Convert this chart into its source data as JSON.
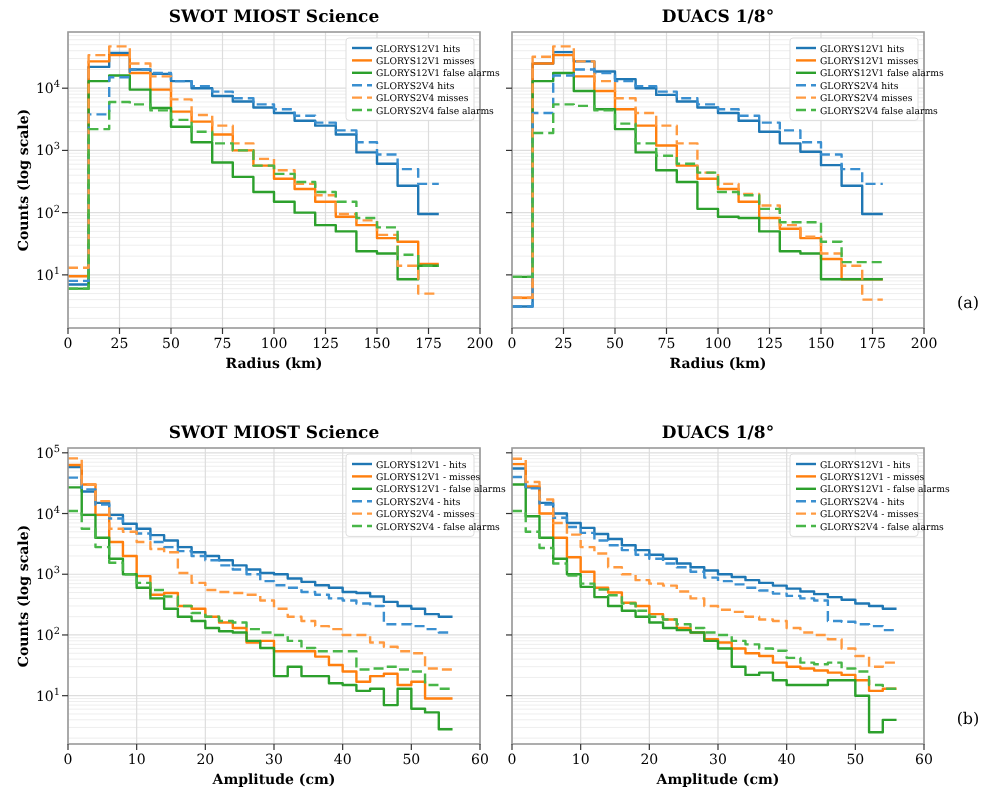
{
  "chart_data": [
    {
      "type": "histogram",
      "title": "SWOT MIOST Science",
      "xlabel": "Radius (km)",
      "ylabel": "Counts (log scale)",
      "log": true,
      "grid": true,
      "legend": "top right",
      "xlim": [
        0,
        200
      ],
      "xticks": [
        0,
        25,
        50,
        75,
        100,
        125,
        150,
        175,
        200
      ],
      "ylim": [
        1.4,
        80000
      ],
      "yticks": [
        {
          "value": 10,
          "label": "10$^{1}$"
        },
        {
          "value": 100,
          "label": "10$^{2}$"
        },
        {
          "value": 1000,
          "label": "10$^{3}$"
        },
        {
          "value": 10000,
          "label": "10$^{4}$"
        }
      ],
      "bins": [
        0,
        10,
        20,
        30,
        40,
        50,
        60,
        70,
        80,
        90,
        100,
        110,
        120,
        130,
        140,
        150,
        160,
        170,
        180
      ],
      "series": [
        {
          "name": "GLORYS12V1 hits",
          "color": "#1f77b4",
          "line_style": "solid",
          "values": [
            7,
            22000,
            37000,
            20000,
            17000,
            13000,
            10000,
            7500,
            6100,
            4900,
            4000,
            3000,
            2500,
            1800,
            930,
            610,
            270,
            95
          ]
        },
        {
          "name": "GLORYS12V1 misses",
          "color": "#ff7f0e",
          "line_style": "solid",
          "values": [
            9.5,
            27000,
            34000,
            17500,
            9500,
            4200,
            2900,
            1800,
            1000,
            570,
            350,
            240,
            150,
            86,
            63,
            39,
            34,
            15
          ]
        },
        {
          "name": "GLORYS12V1 false alarms",
          "color": "#2ca02c",
          "line_style": "solid",
          "values": [
            6,
            13000,
            16000,
            9500,
            4800,
            2400,
            1350,
            640,
            375,
            215,
            150,
            100,
            63,
            50,
            24,
            22,
            8.5,
            14
          ]
        },
        {
          "name": "GLORYS2V4 hits",
          "color": "#3a8fd0",
          "line_style": "dashed",
          "values": [
            8,
            3800,
            15000,
            20000,
            17500,
            13000,
            10800,
            8800,
            6900,
            5500,
            4600,
            3600,
            2800,
            2100,
            1350,
            860,
            500,
            290
          ]
        },
        {
          "name": "GLORYS2V4 misses",
          "color": "#ff9a40",
          "line_style": "dashed",
          "values": [
            13,
            34000,
            47000,
            25000,
            15500,
            6600,
            3700,
            2500,
            1300,
            730,
            480,
            290,
            190,
            95,
            75,
            44,
            14,
            5
          ]
        },
        {
          "name": "GLORYS2V4 false alarms",
          "color": "#48b648",
          "line_style": "dashed",
          "values": [
            6,
            2200,
            6000,
            5500,
            4400,
            3100,
            2000,
            1300,
            1000,
            570,
            420,
            310,
            215,
            150,
            82,
            58,
            21,
            14
          ]
        }
      ]
    },
    {
      "type": "histogram",
      "title": "DUACS 1/8°",
      "xlabel": "Radius (km)",
      "annotations": [
        "(a)"
      ],
      "log": true,
      "grid": true,
      "legend": "top right",
      "tick_labels": "x",
      "xlim": [
        0,
        200
      ],
      "xticks": [
        0,
        25,
        50,
        75,
        100,
        125,
        150,
        175,
        200
      ],
      "ylim": [
        1.4,
        80000
      ],
      "yticks": [
        {
          "value": 10,
          "label": null
        },
        {
          "value": 100,
          "label": null
        },
        {
          "value": 1000,
          "label": null
        },
        {
          "value": 10000,
          "label": null
        }
      ],
      "bins": [
        0,
        10,
        20,
        30,
        40,
        50,
        60,
        70,
        80,
        90,
        100,
        110,
        120,
        130,
        140,
        150,
        160,
        170,
        180
      ],
      "series": [
        {
          "name": "GLORYS12V1 hits",
          "color": "#1f77b4",
          "line_style": "solid",
          "values": [
            3.1,
            25000,
            38000,
            27000,
            18500,
            14000,
            10000,
            7800,
            6100,
            4900,
            4000,
            3000,
            2000,
            1300,
            950,
            580,
            270,
            95
          ]
        },
        {
          "name": "GLORYS12V1 misses",
          "color": "#ff7f0e",
          "line_style": "solid",
          "values": [
            4.3,
            25000,
            34000,
            15500,
            9000,
            4600,
            2500,
            1200,
            570,
            350,
            240,
            150,
            82,
            55,
            39,
            18,
            8.5,
            8.5
          ]
        },
        {
          "name": "GLORYS12V1 false alarms",
          "color": "#2ca02c",
          "line_style": "solid",
          "values": [
            9.3,
            13000,
            17500,
            9000,
            4600,
            2200,
            930,
            480,
            310,
            115,
            86,
            82,
            50,
            24,
            22,
            8.5,
            8.5,
            8.5
          ]
        },
        {
          "name": "GLORYS2V4 hits",
          "color": "#3a8fd0",
          "line_style": "dashed",
          "values": [
            3.1,
            4000,
            16000,
            20000,
            17500,
            13000,
            10800,
            8800,
            6900,
            5500,
            4600,
            3600,
            2800,
            2100,
            1350,
            860,
            500,
            290
          ]
        },
        {
          "name": "GLORYS2V4 misses",
          "color": "#ff9a40",
          "line_style": "dashed",
          "values": [
            4.3,
            32000,
            47000,
            27000,
            13000,
            6900,
            4000,
            2500,
            1300,
            440,
            290,
            200,
            130,
            63,
            41,
            22,
            14,
            4
          ]
        },
        {
          "name": "GLORYS2V4 false alarms",
          "color": "#48b648",
          "line_style": "dashed",
          "values": [
            9.3,
            1900,
            5500,
            5200,
            4400,
            2700,
            1300,
            820,
            610,
            440,
            215,
            190,
            115,
            70,
            70,
            34,
            16,
            16
          ]
        }
      ]
    },
    {
      "type": "histogram",
      "title": "SWOT MIOST Science",
      "xlabel": "Amplitude (cm)",
      "ylabel": "Counts (log scale)",
      "log": true,
      "grid": true,
      "legend": "top right",
      "xlim": [
        0,
        60
      ],
      "xticks": [
        0,
        10,
        20,
        30,
        40,
        50,
        60
      ],
      "ylim": [
        1.6,
        120000
      ],
      "yticks": [
        {
          "value": 10,
          "label": "10$^{1}$"
        },
        {
          "value": 100,
          "label": "10$^{2}$"
        },
        {
          "value": 1000,
          "label": "10$^{3}$"
        },
        {
          "value": 10000,
          "label": "10$^{4}$"
        },
        {
          "value": 100000,
          "label": "10$^{5}$"
        }
      ],
      "bins": [
        0,
        2,
        4,
        6,
        8,
        10,
        12,
        14,
        16,
        18,
        20,
        22,
        24,
        26,
        28,
        30,
        32,
        34,
        36,
        38,
        40,
        42,
        44,
        46,
        48,
        50,
        52,
        54,
        56
      ],
      "series": [
        {
          "name": "GLORYS12V1 - hits",
          "color": "#1f77b4",
          "line_style": "solid",
          "values": [
            58000,
            23000,
            15000,
            9500,
            6800,
            5600,
            4400,
            3600,
            2800,
            2300,
            2000,
            1700,
            1400,
            1200,
            1050,
            1000,
            850,
            750,
            660,
            600,
            510,
            490,
            430,
            350,
            300,
            270,
            220,
            200
          ]
        },
        {
          "name": "GLORYS12V1 - misses",
          "color": "#ff7f0e",
          "line_style": "solid",
          "values": [
            63000,
            30000,
            9500,
            3400,
            2000,
            930,
            460,
            490,
            300,
            270,
            200,
            160,
            130,
            75,
            80,
            54,
            54,
            54,
            44,
            32,
            25,
            17,
            21,
            23,
            15,
            17,
            9,
            9
          ]
        },
        {
          "name": "GLORYS12V1 - false alarms",
          "color": "#2ca02c",
          "line_style": "solid",
          "values": [
            27000,
            9500,
            4000,
            1800,
            1000,
            600,
            400,
            270,
            200,
            170,
            130,
            115,
            110,
            80,
            61,
            21,
            30,
            21,
            21,
            16,
            15,
            12,
            13,
            7,
            13,
            6.1,
            5.3,
            2.8
          ]
        },
        {
          "name": "GLORYS2V4 - hits",
          "color": "#3a8fd0",
          "line_style": "dashed",
          "values": [
            39000,
            25000,
            14000,
            8300,
            5600,
            4700,
            3400,
            2800,
            2400,
            2000,
            1700,
            1400,
            1200,
            1000,
            770,
            660,
            600,
            510,
            460,
            400,
            370,
            330,
            300,
            150,
            150,
            140,
            125,
            110
          ]
        },
        {
          "name": "GLORYS2V4 - misses",
          "color": "#ff9a40",
          "line_style": "dashed",
          "values": [
            81000,
            30000,
            16000,
            5600,
            5000,
            3400,
            2600,
            2300,
            1050,
            720,
            550,
            510,
            490,
            460,
            370,
            270,
            200,
            170,
            140,
            125,
            100,
            100,
            75,
            64,
            54,
            50,
            28,
            27
          ]
        },
        {
          "name": "GLORYS2V4 - false alarms",
          "color": "#48b648",
          "line_style": "dashed",
          "values": [
            11000,
            5600,
            2800,
            1550,
            1000,
            720,
            550,
            430,
            300,
            230,
            200,
            170,
            160,
            125,
            110,
            100,
            80,
            61,
            54,
            54,
            54,
            27,
            28,
            30,
            27,
            25,
            15,
            13
          ]
        }
      ]
    },
    {
      "type": "histogram",
      "title": "DUACS 1/8°",
      "xlabel": "Amplitude (cm)",
      "annotations": [
        "(b)"
      ],
      "log": true,
      "grid": true,
      "legend": "top right",
      "tick_labels": "x",
      "xlim": [
        0,
        60
      ],
      "xticks": [
        0,
        10,
        20,
        30,
        40,
        50,
        60
      ],
      "ylim": [
        1.6,
        120000
      ],
      "yticks": [
        {
          "value": 10,
          "label": null
        },
        {
          "value": 100,
          "label": null
        },
        {
          "value": 1000,
          "label": null
        },
        {
          "value": 10000,
          "label": null
        },
        {
          "value": 100000,
          "label": null
        }
      ],
      "bins": [
        0,
        2,
        4,
        6,
        8,
        10,
        12,
        14,
        16,
        18,
        20,
        22,
        24,
        26,
        28,
        30,
        32,
        34,
        36,
        38,
        40,
        42,
        44,
        46,
        48,
        50,
        52,
        54,
        56
      ],
      "series": [
        {
          "name": "GLORYS12V1 - hits",
          "color": "#1f77b4",
          "line_style": "solid",
          "values": [
            55000,
            27000,
            15000,
            10000,
            7000,
            5800,
            4600,
            3800,
            3000,
            2500,
            2100,
            1800,
            1500,
            1300,
            1150,
            1000,
            900,
            800,
            720,
            650,
            580,
            520,
            470,
            420,
            380,
            330,
            300,
            270
          ]
        },
        {
          "name": "GLORYS12V1 - misses",
          "color": "#ff7f0e",
          "line_style": "solid",
          "values": [
            65000,
            28000,
            10000,
            4000,
            1900,
            1100,
            600,
            500,
            340,
            300,
            220,
            180,
            130,
            110,
            85,
            75,
            60,
            50,
            45,
            35,
            30,
            28,
            26,
            24,
            22,
            18,
            12,
            13
          ]
        },
        {
          "name": "GLORYS12V1 - false alarms",
          "color": "#2ca02c",
          "line_style": "solid",
          "values": [
            30000,
            9000,
            4000,
            1800,
            1000,
            620,
            420,
            300,
            250,
            200,
            160,
            130,
            120,
            110,
            80,
            60,
            30,
            22,
            24,
            18,
            15,
            15,
            15,
            18,
            18,
            10,
            2.5,
            4
          ]
        },
        {
          "name": "GLORYS2V4 - hits",
          "color": "#3a8fd0",
          "line_style": "dashed",
          "values": [
            40000,
            26000,
            14000,
            8500,
            6000,
            4800,
            3600,
            3000,
            2500,
            2100,
            1800,
            1500,
            1300,
            1100,
            880,
            770,
            680,
            600,
            540,
            480,
            440,
            400,
            370,
            170,
            165,
            150,
            140,
            120
          ]
        },
        {
          "name": "GLORYS2V4 - misses",
          "color": "#ff9a40",
          "line_style": "dashed",
          "values": [
            80000,
            33000,
            17000,
            7000,
            4500,
            2800,
            2200,
            1300,
            1000,
            800,
            700,
            650,
            520,
            400,
            300,
            260,
            240,
            200,
            180,
            170,
            130,
            110,
            100,
            85,
            60,
            45,
            30,
            35
          ]
        },
        {
          "name": "GLORYS2V4 - false alarms",
          "color": "#48b648",
          "line_style": "dashed",
          "values": [
            11000,
            5000,
            2700,
            1500,
            950,
            700,
            560,
            450,
            330,
            250,
            200,
            180,
            150,
            130,
            110,
            100,
            80,
            70,
            60,
            55,
            42,
            35,
            33,
            35,
            28,
            25,
            15,
            13
          ]
        }
      ]
    }
  ]
}
